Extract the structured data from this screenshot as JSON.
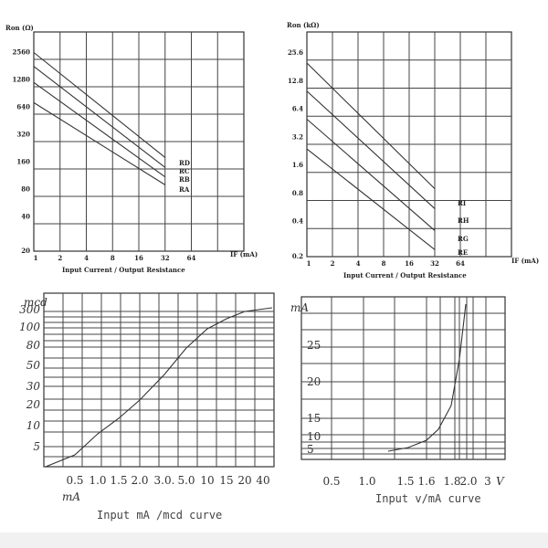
{
  "charts": [
    {
      "id": "ron-ohm",
      "type": "line",
      "ylabel": "Ron (Ω)",
      "xlabel": "IF (mA)",
      "title": "Input Current / Output Resistance",
      "x_ticks": [
        "1",
        "2",
        "4",
        "8",
        "16",
        "32",
        "64"
      ],
      "y_ticks": [
        "20",
        "40",
        "80",
        "160",
        "320",
        "640",
        "1280",
        "2560"
      ],
      "series": [
        {
          "name": "RD",
          "x": [
            1,
            32
          ],
          "y": [
            2560,
            180
          ]
        },
        {
          "name": "RC",
          "x": [
            1,
            32
          ],
          "y": [
            1800,
            140
          ]
        },
        {
          "name": "RB",
          "x": [
            1,
            32
          ],
          "y": [
            1200,
            110
          ]
        },
        {
          "name": "RA",
          "x": [
            1,
            32
          ],
          "y": [
            720,
            90
          ]
        }
      ]
    },
    {
      "id": "ron-kohm",
      "type": "line",
      "ylabel": "Ron (kΩ)",
      "xlabel": "IF (mA)",
      "title": "Input Current / Output Resistance",
      "x_ticks": [
        "1",
        "2",
        "4",
        "8",
        "16",
        "32",
        "64"
      ],
      "y_ticks": [
        "0.2",
        "0.4",
        "0.8",
        "1.6",
        "3.2",
        "6.4",
        "12.8",
        "25.6"
      ],
      "series": [
        {
          "name": "RI",
          "x": [
            1,
            32
          ],
          "y": [
            20,
            0.9
          ]
        },
        {
          "name": "RH",
          "x": [
            1,
            32
          ],
          "y": [
            10,
            0.55
          ]
        },
        {
          "name": "RG",
          "x": [
            1,
            32
          ],
          "y": [
            5,
            0.32
          ]
        },
        {
          "name": "RE",
          "x": [
            1,
            32
          ],
          "y": [
            2.4,
            0.2
          ]
        }
      ]
    },
    {
      "id": "mcd",
      "type": "line",
      "ylabel": "mcd",
      "xlabel": "mA",
      "title": "Input mA /mcd curve",
      "x_ticks": [
        "0.5",
        "1.0",
        "1.5",
        "2.0",
        "3.0.",
        "5.0",
        "10",
        "15",
        "20",
        "40"
      ],
      "y_ticks": [
        "5",
        "10",
        "20",
        "30",
        "50",
        "80",
        "100",
        "300"
      ],
      "series": [
        {
          "name": "",
          "x": [
            0,
            0.5,
            1.0,
            1.5,
            2.0,
            3.0,
            5.0,
            10,
            15,
            20,
            40
          ],
          "y": [
            0,
            2,
            6,
            10,
            17,
            28,
            55,
            100,
            160,
            260,
            300
          ]
        }
      ]
    },
    {
      "id": "v-ma",
      "type": "line",
      "ylabel": "mA",
      "xlabel": "V",
      "title": "Input v/mA curve",
      "x_ticks": [
        "0.5",
        "1.0",
        "1.5",
        "1.6",
        "1.8",
        "2.0",
        "3"
      ],
      "y_ticks": [
        "5",
        "10",
        "15",
        "20",
        "25"
      ],
      "series": [
        {
          "name": "",
          "x": [
            1.5,
            1.6,
            1.7,
            1.75,
            1.8,
            1.83,
            1.85
          ],
          "y": [
            4.8,
            5.2,
            6.5,
            8,
            12,
            20,
            26
          ]
        }
      ]
    }
  ]
}
